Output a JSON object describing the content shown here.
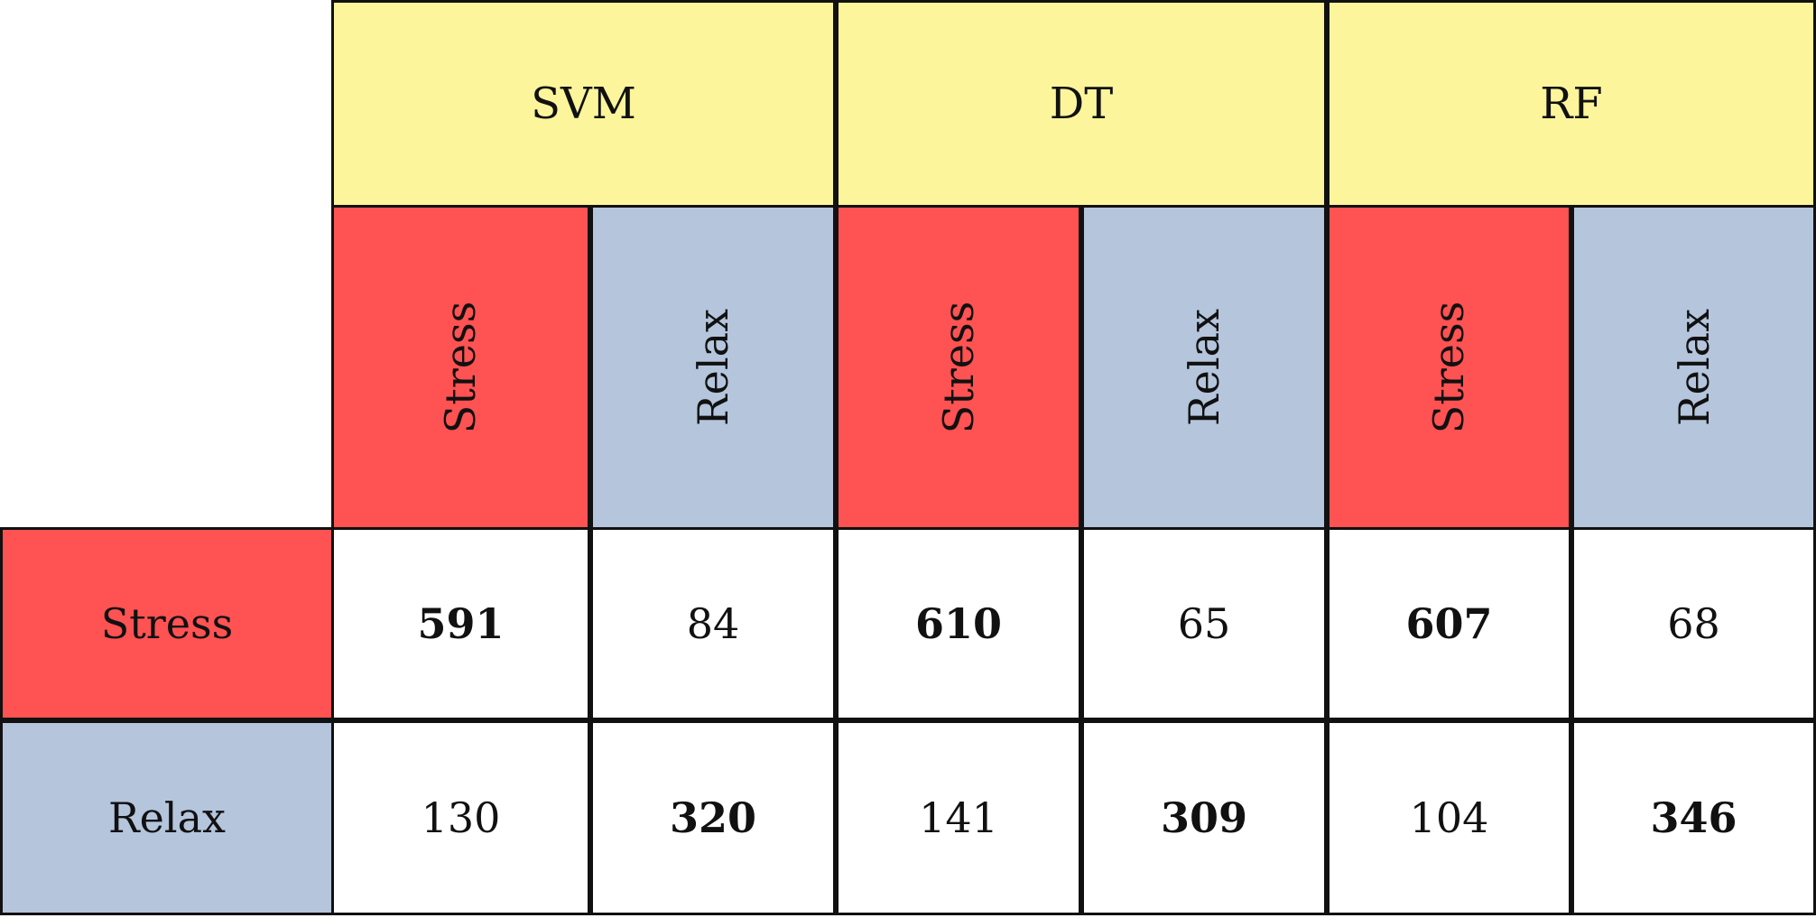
{
  "chart_data": {
    "type": "table",
    "models": [
      "SVM",
      "DT",
      "RF"
    ],
    "classes": [
      "Stress",
      "Relax"
    ],
    "colors": {
      "model_header": "#fdf59b",
      "stress": "#ff5252",
      "relax": "#b4c5dc",
      "cell": "#ffffff",
      "border": "#111111"
    },
    "rows": [
      {
        "label": "Stress",
        "values": [
          {
            "text": "591",
            "bold": true
          },
          {
            "text": "84",
            "bold": false
          },
          {
            "text": "610",
            "bold": true
          },
          {
            "text": "65",
            "bold": false
          },
          {
            "text": "607",
            "bold": true
          },
          {
            "text": "68",
            "bold": false
          }
        ]
      },
      {
        "label": "Relax",
        "values": [
          {
            "text": "130",
            "bold": false
          },
          {
            "text": "320",
            "bold": true
          },
          {
            "text": "141",
            "bold": false
          },
          {
            "text": "309",
            "bold": true
          },
          {
            "text": "104",
            "bold": false
          },
          {
            "text": "346",
            "bold": true
          }
        ]
      }
    ]
  }
}
